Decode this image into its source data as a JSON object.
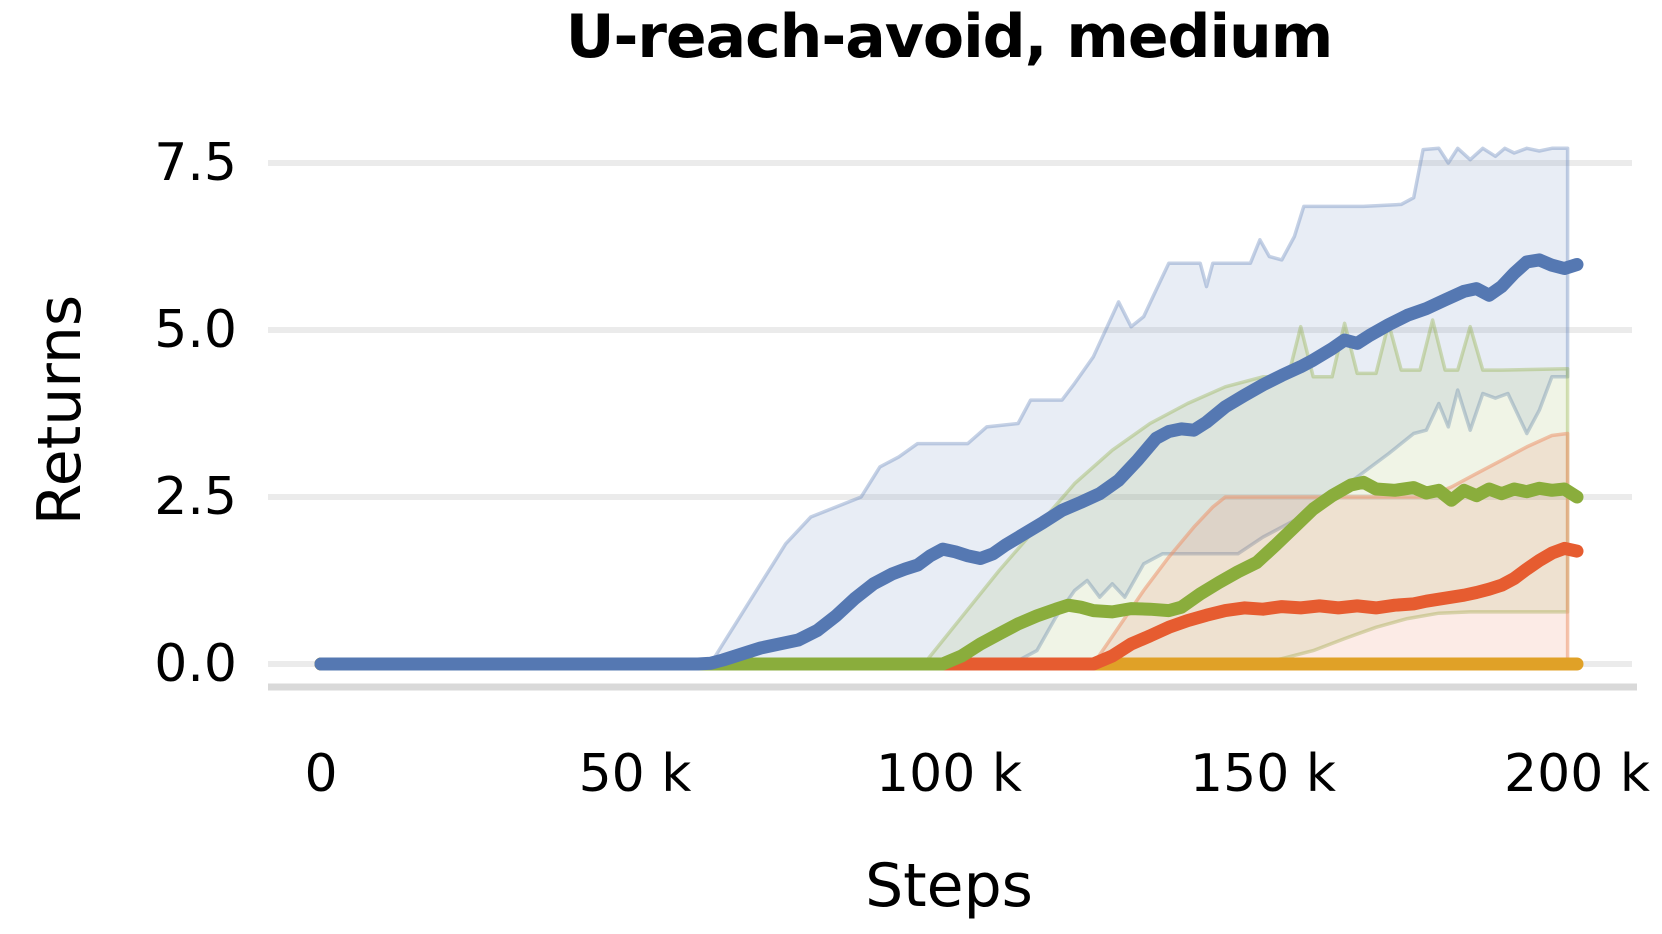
{
  "title": "U-reach-avoid, medium",
  "axes": {
    "x_label": "Steps",
    "y_label": "Returns",
    "x_ticks": [
      {
        "k": 0,
        "label": "0"
      },
      {
        "k": 50,
        "label": "50 k"
      },
      {
        "k": 100,
        "label": "100 k"
      },
      {
        "k": 150,
        "label": "150 k"
      },
      {
        "k": 200,
        "label": "200 k"
      }
    ],
    "y_ticks": [
      {
        "v": 0.0,
        "label": "0.0"
      },
      {
        "v": 2.5,
        "label": "2.5"
      },
      {
        "v": 5.0,
        "label": "5.0"
      },
      {
        "v": 7.5,
        "label": "7.5"
      }
    ]
  },
  "colors": {
    "blue": "#5578b2",
    "green": "#8aad3c",
    "orange": "#e65c30",
    "gold": "#e0a127",
    "blue_band_fill": "rgba(110,140,190,0.16)",
    "blue_band_edge": "rgba(110,140,190,0.40)",
    "green_band_fill": "rgba(140,172,60,0.13)",
    "green_band_edge": "rgba(140,172,60,0.35)",
    "orange_band_fill": "rgba(232,90,46,0.12)",
    "orange_band_edge": "rgba(236,150,110,0.55)",
    "grid": "#ebebeb",
    "axis_line": "#d9d9d9",
    "text": "#000000"
  },
  "chart_data": {
    "type": "line",
    "title": "U-reach-avoid, medium",
    "xlabel": "Steps",
    "ylabel": "Returns",
    "x_unit": "thousands of steps",
    "x_range_steps": [
      0,
      200000
    ],
    "ylim": [
      -0.45,
      8.0
    ],
    "grid": "horizontal-only",
    "legend": "none",
    "series": [
      {
        "name": "series-blue",
        "color_key": "blue",
        "points": [
          [
            0,
            0
          ],
          [
            20,
            0
          ],
          [
            40,
            0
          ],
          [
            55,
            0
          ],
          [
            60,
            0
          ],
          [
            62,
            0.01
          ],
          [
            64,
            0.06
          ],
          [
            66,
            0.12
          ],
          [
            68,
            0.18
          ],
          [
            70,
            0.24
          ],
          [
            73,
            0.3
          ],
          [
            76,
            0.36
          ],
          [
            79,
            0.5
          ],
          [
            82,
            0.72
          ],
          [
            85,
            0.98
          ],
          [
            88,
            1.2
          ],
          [
            91,
            1.35
          ],
          [
            93,
            1.42
          ],
          [
            95,
            1.48
          ],
          [
            97,
            1.62
          ],
          [
            99,
            1.72
          ],
          [
            101,
            1.68
          ],
          [
            103,
            1.62
          ],
          [
            105,
            1.58
          ],
          [
            107,
            1.65
          ],
          [
            109,
            1.78
          ],
          [
            112,
            1.95
          ],
          [
            115,
            2.12
          ],
          [
            118,
            2.3
          ],
          [
            121,
            2.42
          ],
          [
            124,
            2.55
          ],
          [
            127,
            2.75
          ],
          [
            130,
            3.05
          ],
          [
            133,
            3.38
          ],
          [
            135,
            3.48
          ],
          [
            137,
            3.52
          ],
          [
            139,
            3.5
          ],
          [
            141,
            3.62
          ],
          [
            144,
            3.85
          ],
          [
            147,
            4.02
          ],
          [
            150,
            4.18
          ],
          [
            153,
            4.32
          ],
          [
            156,
            4.45
          ],
          [
            158,
            4.55
          ],
          [
            161,
            4.72
          ],
          [
            163,
            4.85
          ],
          [
            165,
            4.8
          ],
          [
            167,
            4.92
          ],
          [
            170,
            5.08
          ],
          [
            173,
            5.22
          ],
          [
            176,
            5.32
          ],
          [
            179,
            5.45
          ],
          [
            182,
            5.58
          ],
          [
            184,
            5.62
          ],
          [
            186,
            5.52
          ],
          [
            188,
            5.65
          ],
          [
            190,
            5.85
          ],
          [
            192,
            6.02
          ],
          [
            194,
            6.05
          ],
          [
            196,
            5.97
          ],
          [
            198,
            5.92
          ],
          [
            200,
            5.98
          ]
        ]
      },
      {
        "name": "series-green",
        "color_key": "green",
        "points": [
          [
            0,
            0
          ],
          [
            40,
            0
          ],
          [
            80,
            0
          ],
          [
            99,
            0
          ],
          [
            102,
            0.12
          ],
          [
            105,
            0.3
          ],
          [
            108,
            0.45
          ],
          [
            111,
            0.6
          ],
          [
            114,
            0.72
          ],
          [
            117,
            0.82
          ],
          [
            119,
            0.88
          ],
          [
            121,
            0.85
          ],
          [
            123,
            0.8
          ],
          [
            126,
            0.78
          ],
          [
            129,
            0.83
          ],
          [
            132,
            0.82
          ],
          [
            135,
            0.8
          ],
          [
            137,
            0.85
          ],
          [
            140,
            1.05
          ],
          [
            143,
            1.22
          ],
          [
            146,
            1.38
          ],
          [
            149,
            1.52
          ],
          [
            152,
            1.78
          ],
          [
            155,
            2.05
          ],
          [
            158,
            2.32
          ],
          [
            161,
            2.52
          ],
          [
            164,
            2.68
          ],
          [
            166,
            2.72
          ],
          [
            168,
            2.62
          ],
          [
            171,
            2.6
          ],
          [
            174,
            2.64
          ],
          [
            176,
            2.56
          ],
          [
            178,
            2.6
          ],
          [
            180,
            2.45
          ],
          [
            182,
            2.6
          ],
          [
            184,
            2.52
          ],
          [
            186,
            2.62
          ],
          [
            188,
            2.55
          ],
          [
            190,
            2.62
          ],
          [
            192,
            2.58
          ],
          [
            194,
            2.63
          ],
          [
            196,
            2.6
          ],
          [
            198,
            2.62
          ],
          [
            200,
            2.5
          ]
        ]
      },
      {
        "name": "series-orange",
        "color_key": "orange",
        "points": [
          [
            0,
            0
          ],
          [
            50,
            0
          ],
          [
            100,
            0
          ],
          [
            123,
            0
          ],
          [
            126,
            0.12
          ],
          [
            129,
            0.3
          ],
          [
            132,
            0.42
          ],
          [
            135,
            0.55
          ],
          [
            138,
            0.65
          ],
          [
            141,
            0.73
          ],
          [
            144,
            0.8
          ],
          [
            147,
            0.84
          ],
          [
            150,
            0.82
          ],
          [
            153,
            0.86
          ],
          [
            156,
            0.84
          ],
          [
            159,
            0.87
          ],
          [
            162,
            0.84
          ],
          [
            165,
            0.87
          ],
          [
            168,
            0.84
          ],
          [
            171,
            0.88
          ],
          [
            174,
            0.9
          ],
          [
            176,
            0.94
          ],
          [
            178,
            0.97
          ],
          [
            180,
            1.0
          ],
          [
            182,
            1.03
          ],
          [
            184,
            1.07
          ],
          [
            186,
            1.12
          ],
          [
            188,
            1.18
          ],
          [
            190,
            1.28
          ],
          [
            192,
            1.42
          ],
          [
            194,
            1.55
          ],
          [
            196,
            1.66
          ],
          [
            198,
            1.73
          ],
          [
            200,
            1.69
          ]
        ]
      },
      {
        "name": "series-gold",
        "color_key": "gold",
        "points": [
          [
            0,
            0
          ],
          [
            50,
            0
          ],
          [
            100,
            0
          ],
          [
            150,
            0
          ],
          [
            200,
            0
          ]
        ]
      }
    ],
    "bands": [
      {
        "name": "band-blue-ci",
        "fill_key": "blue_band_fill",
        "edge_key": "blue_band_edge",
        "upper": [
          [
            62,
            0
          ],
          [
            64,
            0.3
          ],
          [
            66,
            0.6
          ],
          [
            68,
            0.9
          ],
          [
            70,
            1.2
          ],
          [
            72,
            1.5
          ],
          [
            74,
            1.8
          ],
          [
            78,
            2.2
          ],
          [
            82,
            2.35
          ],
          [
            86,
            2.5
          ],
          [
            89,
            2.95
          ],
          [
            92,
            3.1
          ],
          [
            95,
            3.3
          ],
          [
            103,
            3.3
          ],
          [
            106,
            3.55
          ],
          [
            111,
            3.6
          ],
          [
            113,
            3.95
          ],
          [
            118,
            3.95
          ],
          [
            120,
            4.2
          ],
          [
            123,
            4.6
          ],
          [
            127,
            5.42
          ],
          [
            129,
            5.05
          ],
          [
            131,
            5.2
          ],
          [
            133,
            5.6
          ],
          [
            135,
            6.0
          ],
          [
            140,
            6.0
          ],
          [
            141,
            5.65
          ],
          [
            142,
            6.0
          ],
          [
            148,
            6.0
          ],
          [
            149.5,
            6.35
          ],
          [
            151,
            6.1
          ],
          [
            153,
            6.05
          ],
          [
            155,
            6.4
          ],
          [
            156.5,
            6.85
          ],
          [
            166,
            6.85
          ],
          [
            172,
            6.88
          ],
          [
            174,
            6.98
          ],
          [
            175.5,
            7.7
          ],
          [
            178,
            7.72
          ],
          [
            179.5,
            7.5
          ],
          [
            181,
            7.72
          ],
          [
            183,
            7.55
          ],
          [
            185,
            7.72
          ],
          [
            187,
            7.6
          ],
          [
            188.5,
            7.72
          ],
          [
            190,
            7.65
          ],
          [
            192,
            7.72
          ],
          [
            194,
            7.68
          ],
          [
            196,
            7.72
          ],
          [
            198.5,
            7.72
          ]
        ],
        "lower": [
          [
            62,
            0
          ],
          [
            100,
            0
          ],
          [
            110,
            0
          ],
          [
            114,
            0.2
          ],
          [
            117,
            0.7
          ],
          [
            120,
            1.1
          ],
          [
            122,
            1.25
          ],
          [
            124,
            1.0
          ],
          [
            126,
            1.2
          ],
          [
            128,
            1.0
          ],
          [
            131,
            1.5
          ],
          [
            134,
            1.65
          ],
          [
            146,
            1.65
          ],
          [
            150,
            1.9
          ],
          [
            155,
            2.15
          ],
          [
            160,
            2.45
          ],
          [
            165,
            2.8
          ],
          [
            170,
            3.15
          ],
          [
            174,
            3.45
          ],
          [
            176,
            3.5
          ],
          [
            178,
            3.9
          ],
          [
            179.5,
            3.55
          ],
          [
            181,
            4.1
          ],
          [
            183,
            3.5
          ],
          [
            185,
            4.05
          ],
          [
            187,
            3.98
          ],
          [
            189,
            4.05
          ],
          [
            192,
            3.45
          ],
          [
            194,
            3.8
          ],
          [
            196,
            4.3
          ],
          [
            198.5,
            4.3
          ]
        ]
      },
      {
        "name": "band-green-ci",
        "fill_key": "green_band_fill",
        "edge_key": "green_band_edge",
        "upper": [
          [
            96,
            0
          ],
          [
            102,
            0.7
          ],
          [
            108,
            1.4
          ],
          [
            114,
            2.05
          ],
          [
            120,
            2.7
          ],
          [
            126,
            3.2
          ],
          [
            132,
            3.6
          ],
          [
            138,
            3.9
          ],
          [
            144,
            4.15
          ],
          [
            150,
            4.3
          ],
          [
            154,
            4.3
          ],
          [
            156,
            5.05
          ],
          [
            158,
            4.3
          ],
          [
            161,
            4.3
          ],
          [
            163,
            5.1
          ],
          [
            165,
            4.35
          ],
          [
            168,
            4.35
          ],
          [
            170,
            5.1
          ],
          [
            172,
            4.4
          ],
          [
            175,
            4.4
          ],
          [
            177,
            5.15
          ],
          [
            179,
            4.4
          ],
          [
            181,
            4.4
          ],
          [
            183,
            5.05
          ],
          [
            185,
            4.4
          ],
          [
            188,
            4.4
          ],
          [
            198.5,
            4.42
          ]
        ],
        "lower": [
          [
            96,
            0
          ],
          [
            148,
            0
          ],
          [
            153,
            0.08
          ],
          [
            158,
            0.2
          ],
          [
            163,
            0.38
          ],
          [
            168,
            0.55
          ],
          [
            173,
            0.68
          ],
          [
            178,
            0.76
          ],
          [
            183,
            0.78
          ],
          [
            198.5,
            0.78
          ]
        ]
      },
      {
        "name": "band-orange-ci",
        "fill_key": "orange_band_fill",
        "edge_key": "orange_band_edge",
        "upper": [
          [
            123,
            0
          ],
          [
            127,
            0.55
          ],
          [
            131,
            1.1
          ],
          [
            135,
            1.6
          ],
          [
            139,
            2.05
          ],
          [
            142,
            2.35
          ],
          [
            144,
            2.5
          ],
          [
            176,
            2.5
          ],
          [
            180,
            2.65
          ],
          [
            184,
            2.85
          ],
          [
            188,
            3.05
          ],
          [
            192,
            3.25
          ],
          [
            196,
            3.42
          ],
          [
            198.5,
            3.45
          ]
        ],
        "lower": [
          [
            123,
            0
          ],
          [
            198.5,
            0
          ]
        ]
      }
    ]
  }
}
